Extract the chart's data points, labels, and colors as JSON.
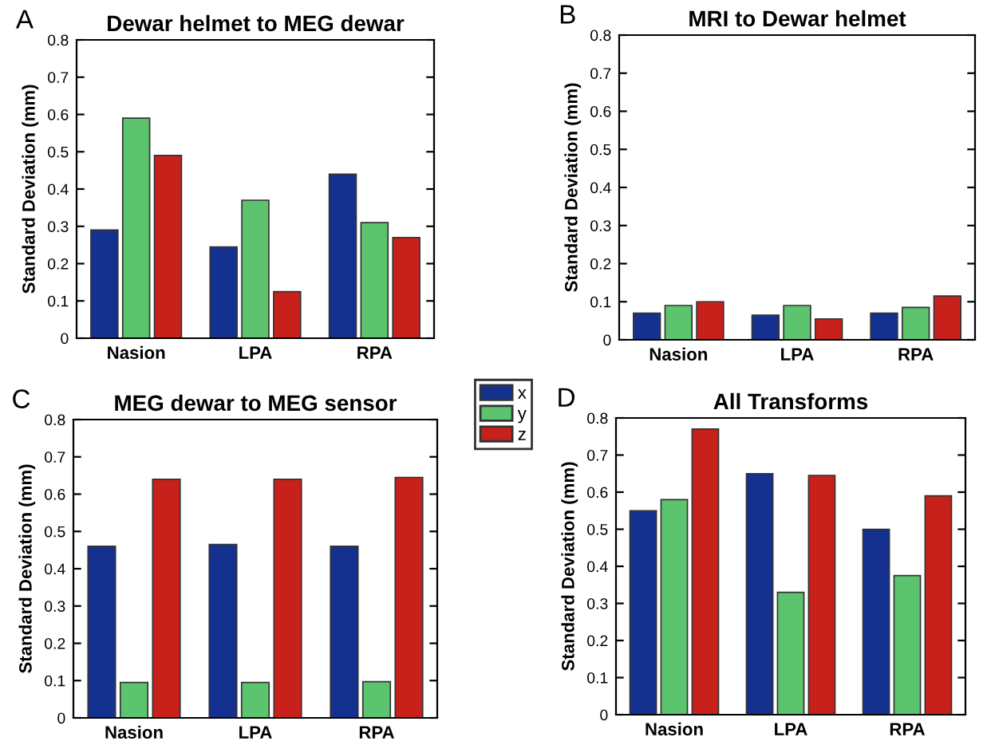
{
  "chart_data": [
    {
      "type": "bar",
      "title": "Dewar helmet to MEG dewar",
      "ylabel": "Standard Deviation (mm)",
      "annotations": [
        "A"
      ],
      "categories": [
        "Nasion",
        "LPA",
        "RPA"
      ],
      "ylim": [
        0,
        0.8
      ],
      "yticks": [
        0,
        0.1,
        0.2,
        0.3,
        0.4,
        0.5,
        0.6,
        0.7,
        0.8
      ],
      "grid": false,
      "legend": "bottom right",
      "series": [
        {
          "name": "x",
          "color": "#15318f",
          "values": [
            0.29,
            0.245,
            0.44
          ]
        },
        {
          "name": "y",
          "color": "#5cc46e",
          "values": [
            0.59,
            0.37,
            0.31
          ]
        },
        {
          "name": "z",
          "color": "#c8211b",
          "values": [
            0.49,
            0.125,
            0.27
          ]
        }
      ]
    },
    {
      "type": "bar",
      "title": "MRI to Dewar helmet",
      "ylabel": "Standard Deviation (mm)",
      "annotations": [
        "B"
      ],
      "categories": [
        "Nasion",
        "LPA",
        "RPA"
      ],
      "ylim": [
        0,
        0.8
      ],
      "yticks": [
        0,
        0.1,
        0.2,
        0.3,
        0.4,
        0.5,
        0.6,
        0.7,
        0.8
      ],
      "grid": false,
      "series": [
        {
          "color": "#15318f",
          "values": [
            0.07,
            0.065,
            0.07
          ]
        },
        {
          "color": "#5cc46e",
          "values": [
            0.09,
            0.09,
            0.085
          ]
        },
        {
          "color": "#c8211b",
          "values": [
            0.1,
            0.055,
            0.115
          ]
        }
      ]
    },
    {
      "type": "bar",
      "title": "MEG dewar to MEG sensor",
      "ylabel": "Standard Deviation (mm)",
      "annotations": [
        "C"
      ],
      "categories": [
        "Nasion",
        "LPA",
        "RPA"
      ],
      "ylim": [
        0,
        0.8
      ],
      "yticks": [
        0,
        0.1,
        0.2,
        0.3,
        0.4,
        0.5,
        0.6,
        0.7,
        0.8
      ],
      "grid": false,
      "series": [
        {
          "color": "#15318f",
          "values": [
            0.46,
            0.465,
            0.46
          ]
        },
        {
          "color": "#5cc46e",
          "values": [
            0.095,
            0.095,
            0.097
          ]
        },
        {
          "color": "#c8211b",
          "values": [
            0.64,
            0.64,
            0.645
          ]
        }
      ]
    },
    {
      "type": "bar",
      "title": "All Transforms",
      "ylabel": "Standard Deviation (mm)",
      "annotations": [
        "D"
      ],
      "categories": [
        "Nasion",
        "LPA",
        "RPA"
      ],
      "ylim": [
        0,
        0.8
      ],
      "yticks": [
        0,
        0.1,
        0.2,
        0.3,
        0.4,
        0.5,
        0.6,
        0.7,
        0.8
      ],
      "grid": false,
      "series": [
        {
          "color": "#15318f",
          "values": [
            0.55,
            0.65,
            0.5
          ]
        },
        {
          "color": "#5cc46e",
          "values": [
            0.58,
            0.33,
            0.375
          ]
        },
        {
          "color": "#c8211b",
          "values": [
            0.77,
            0.645,
            0.59
          ]
        }
      ]
    }
  ]
}
